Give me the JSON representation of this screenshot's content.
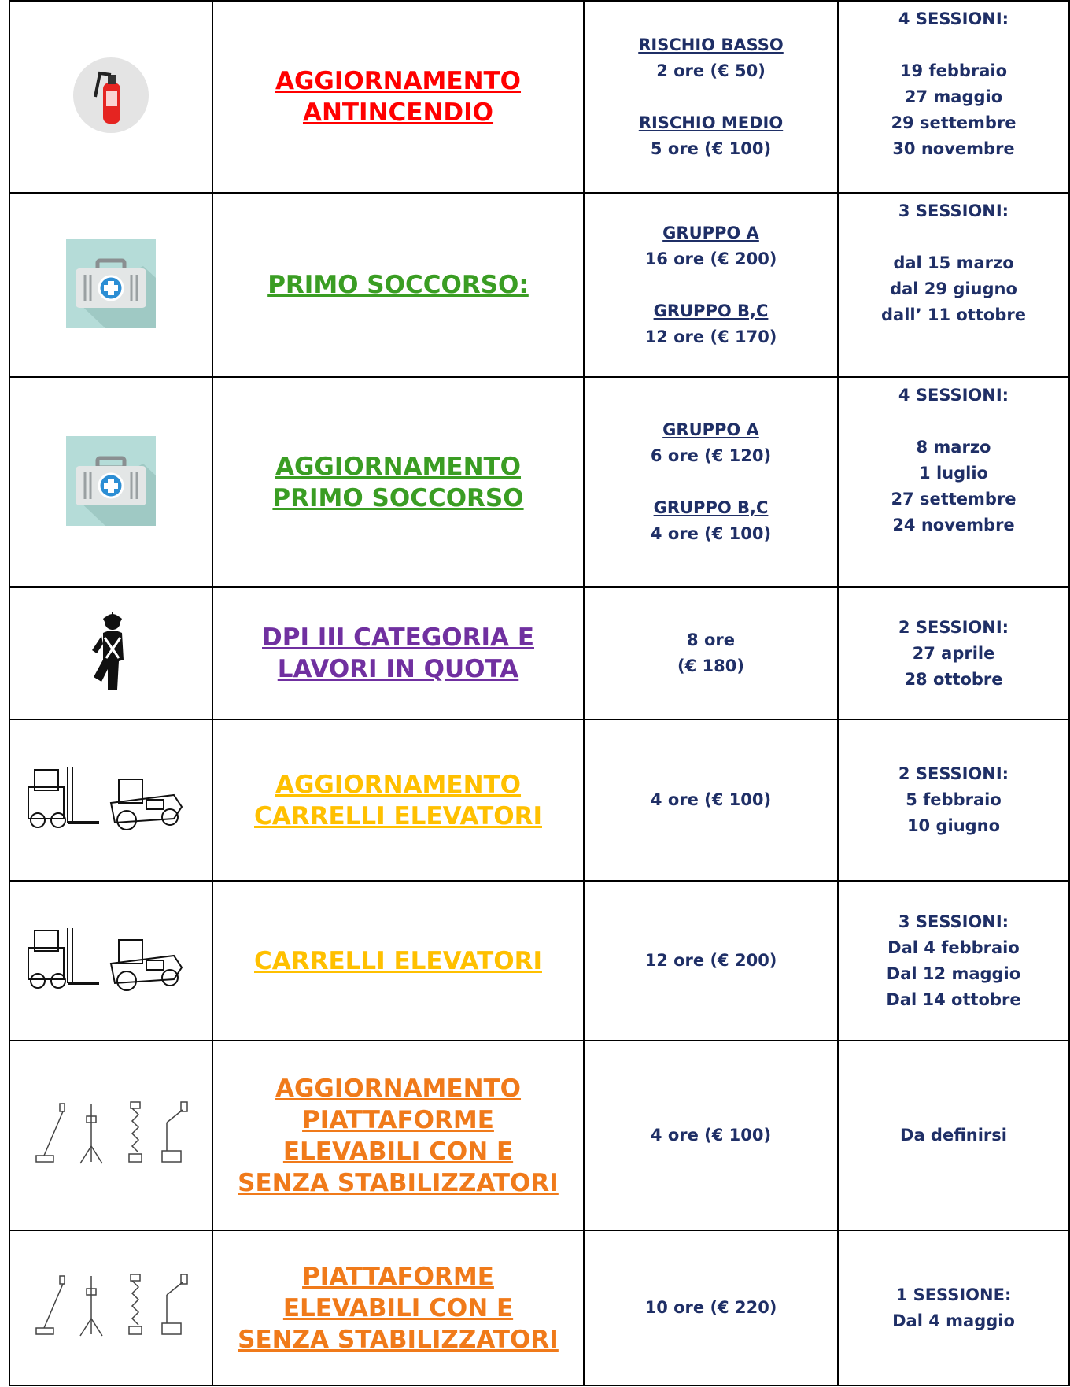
{
  "rows": [
    {
      "course": [
        "AGGIORNAMENTO",
        "ANTINCENDIO"
      ],
      "course_color": "#ff0000",
      "pricing": [
        {
          "label": "RISCHIO BASSO",
          "detail": "2 ore (€ 50)"
        },
        {
          "label": "RISCHIO MEDIO",
          "detail": "5 ore (€ 100)"
        }
      ],
      "sessions": {
        "heading": "4 SESSIONI:",
        "dates": [
          "19 febbraio",
          "27 maggio",
          "29 settembre",
          "30 novembre"
        ]
      }
    },
    {
      "course": [
        "PRIMO SOCCORSO:"
      ],
      "course_color": "#3a9d23",
      "pricing": [
        {
          "label": "GRUPPO A",
          "detail": "16 ore (€ 200)"
        },
        {
          "label": "GRUPPO B,C",
          "detail": "12 ore (€ 170)"
        }
      ],
      "sessions": {
        "heading": "3 SESSIONI:",
        "dates": [
          "dal 15 marzo",
          "dal 29 giugno",
          "dall’ 11 ottobre"
        ]
      }
    },
    {
      "course": [
        "AGGIORNAMENTO",
        "PRIMO SOCCORSO"
      ],
      "course_color": "#3a9d23",
      "pricing": [
        {
          "label": "GRUPPO A",
          "detail": "6 ore (€ 120)"
        },
        {
          "label": "GRUPPO B,C",
          "detail": "4 ore (€ 100)"
        }
      ],
      "sessions": {
        "heading": "4 SESSIONI:",
        "dates": [
          "8 marzo",
          "1 luglio",
          "27 settembre",
          "24 novembre"
        ]
      }
    },
    {
      "course": [
        "DPI III CATEGORIA E",
        "LAVORI IN QUOTA"
      ],
      "course_color": "#7030a0",
      "pricing": [
        {
          "detail": "8 ore"
        },
        {
          "detail": "(€ 180)"
        }
      ],
      "sessions": {
        "heading": "2 SESSIONI:",
        "dates": [
          "27 aprile",
          "28 ottobre"
        ]
      }
    },
    {
      "course": [
        "AGGIORNAMENTO",
        "CARRELLI ELEVATORI"
      ],
      "course_color": "#ffc000",
      "pricing": [
        {
          "detail": "4 ore (€ 100)"
        }
      ],
      "sessions": {
        "heading": "2 SESSIONI:",
        "dates": [
          "5 febbraio",
          "10 giugno"
        ]
      }
    },
    {
      "course": [
        "CARRELLI ELEVATORI"
      ],
      "course_color": "#ffc000",
      "pricing": [
        {
          "detail": "12 ore (€ 200)"
        }
      ],
      "sessions": {
        "heading": "3 SESSIONI:",
        "dates": [
          "Dal 4 febbraio",
          "Dal 12 maggio",
          "Dal 14 ottobre"
        ]
      }
    },
    {
      "course": [
        "AGGIORNAMENTO",
        "PIATTAFORME",
        "ELEVABILI CON E",
        "SENZA STABILIZZATORI"
      ],
      "course_color": "#f07a1a",
      "pricing": [
        {
          "detail": "4 ore (€ 100)"
        }
      ],
      "sessions": {
        "heading": "Da definirsi",
        "dates": []
      }
    },
    {
      "course": [
        "PIATTAFORME",
        "ELEVABILI CON E",
        "SENZA STABILIZZATORI"
      ],
      "course_color": "#f07a1a",
      "pricing": [
        {
          "detail": "10 ore (€ 220)"
        }
      ],
      "sessions": {
        "heading": "1 SESSIONE:",
        "dates": [
          "Dal 4 maggio"
        ]
      }
    }
  ]
}
